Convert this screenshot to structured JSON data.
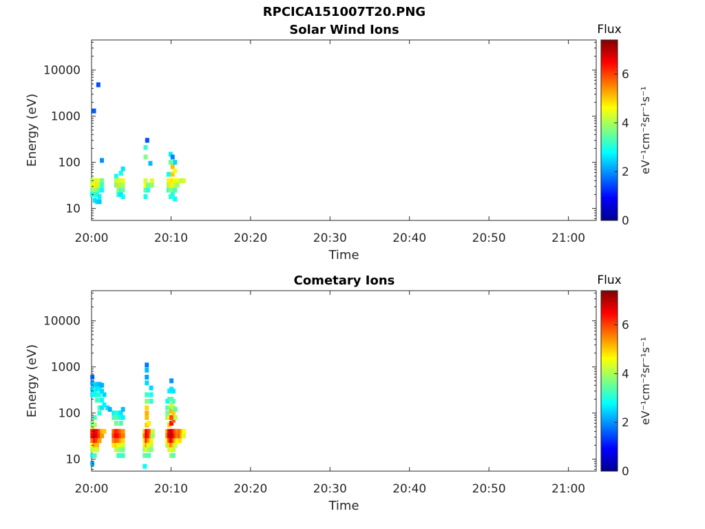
{
  "figure": {
    "title": "RPCICA151007T20.PNG"
  },
  "chart_data": [
    {
      "type": "heatmap",
      "title": "Solar Wind Ions",
      "xlabel": "Time",
      "ylabel": "Energy (eV)",
      "x_ticks": [
        "20:00",
        "20:10",
        "20:20",
        "20:30",
        "20:40",
        "20:50",
        "21:00"
      ],
      "y_ticks": [
        "10",
        "100",
        "1000",
        "10000"
      ],
      "y_scale": "log",
      "ylim": [
        5.5,
        45000
      ],
      "xlim": [
        "20:00",
        "21:03.5"
      ],
      "colorbar": {
        "label": "Flux",
        "unit": "eV⁻¹cm⁻²sr⁻¹s⁻¹",
        "range": [
          0,
          7.4
        ],
        "ticks": [
          "0",
          "2",
          "4",
          "6"
        ],
        "colormap": "jet"
      },
      "cells_time_minutes_after_2000_energy_eV_flux": [
        [
          0.1,
          40,
          3.9
        ],
        [
          0.1,
          32,
          4.4
        ],
        [
          0.1,
          25,
          3.6
        ],
        [
          0.1,
          20,
          2.8
        ],
        [
          0.4,
          40,
          4.5
        ],
        [
          0.4,
          32,
          4.7
        ],
        [
          0.4,
          25,
          4.0
        ],
        [
          0.4,
          20,
          3.2
        ],
        [
          0.4,
          15,
          2.6
        ],
        [
          0.7,
          40,
          4.2
        ],
        [
          0.7,
          32,
          4.8
        ],
        [
          0.7,
          25,
          3.8
        ],
        [
          0.7,
          20,
          3.0
        ],
        [
          0.7,
          14,
          2.5
        ],
        [
          1.0,
          40,
          4.6
        ],
        [
          1.0,
          32,
          4.1
        ],
        [
          1.0,
          25,
          3.4
        ],
        [
          1.0,
          18,
          2.7
        ],
        [
          1.0,
          14,
          2.4
        ],
        [
          1.3,
          40,
          3.6
        ],
        [
          1.3,
          32,
          3.2
        ],
        [
          1.3,
          25,
          2.8
        ],
        [
          0.3,
          1300,
          1.6
        ],
        [
          0.85,
          4800,
          1.5
        ],
        [
          1.3,
          110,
          2.0
        ],
        [
          3.1,
          50,
          2.9
        ],
        [
          3.1,
          40,
          4.1
        ],
        [
          3.1,
          32,
          3.6
        ],
        [
          3.4,
          40,
          4.4
        ],
        [
          3.4,
          32,
          4.9
        ],
        [
          3.4,
          25,
          3.7
        ],
        [
          3.4,
          20,
          3.0
        ],
        [
          3.7,
          58,
          2.9
        ],
        [
          3.7,
          40,
          4.2
        ],
        [
          3.7,
          32,
          3.9
        ],
        [
          3.7,
          25,
          3.3
        ],
        [
          3.7,
          20,
          2.6
        ],
        [
          3.95,
          72,
          2.6
        ],
        [
          3.95,
          40,
          4.5
        ],
        [
          3.95,
          32,
          4.0
        ],
        [
          3.95,
          25,
          3.5
        ],
        [
          3.95,
          18,
          2.8
        ],
        [
          6.8,
          210,
          3.1
        ],
        [
          6.8,
          130,
          3.7
        ],
        [
          6.8,
          40,
          4.3
        ],
        [
          6.8,
          32,
          4.6
        ],
        [
          6.8,
          25,
          3.4
        ],
        [
          6.8,
          18,
          2.9
        ],
        [
          7.0,
          300,
          1.5
        ],
        [
          7.1,
          32,
          3.6
        ],
        [
          7.1,
          25,
          3.0
        ],
        [
          7.4,
          95,
          2.3
        ],
        [
          7.6,
          40,
          4.4
        ],
        [
          7.6,
          32,
          3.8
        ],
        [
          9.7,
          55,
          2.9
        ],
        [
          9.7,
          40,
          4.4
        ],
        [
          9.7,
          32,
          4.0
        ],
        [
          9.7,
          25,
          3.1
        ],
        [
          9.95,
          150,
          2.7
        ],
        [
          9.95,
          100,
          3.5
        ],
        [
          9.95,
          40,
          4.7
        ],
        [
          9.95,
          32,
          4.8
        ],
        [
          9.95,
          25,
          3.9
        ],
        [
          9.95,
          18,
          3.1
        ],
        [
          10.2,
          130,
          1.9
        ],
        [
          10.2,
          80,
          5.1
        ],
        [
          10.2,
          55,
          5.0
        ],
        [
          10.2,
          40,
          4.8
        ],
        [
          10.2,
          32,
          4.5
        ],
        [
          10.2,
          25,
          3.6
        ],
        [
          10.2,
          20,
          3.0
        ],
        [
          10.5,
          100,
          2.5
        ],
        [
          10.5,
          65,
          4.5
        ],
        [
          10.5,
          40,
          4.6
        ],
        [
          10.5,
          32,
          4.2
        ],
        [
          10.5,
          25,
          3.3
        ],
        [
          10.5,
          16,
          2.8
        ],
        [
          10.8,
          40,
          4.6
        ],
        [
          10.8,
          32,
          3.9
        ],
        [
          11.3,
          40,
          4.0
        ],
        [
          11.6,
          40,
          4.3
        ]
      ]
    },
    {
      "type": "heatmap",
      "title": "Cometary Ions",
      "xlabel": "Time",
      "ylabel": "Energy (eV)",
      "x_ticks": [
        "20:00",
        "20:10",
        "20:20",
        "20:30",
        "20:40",
        "20:50",
        "21:00"
      ],
      "y_ticks": [
        "10",
        "100",
        "1000",
        "10000"
      ],
      "y_scale": "log",
      "ylim": [
        5.5,
        45000
      ],
      "xlim": [
        "20:00",
        "21:03.5"
      ],
      "colorbar": {
        "label": "Flux",
        "unit": "eV⁻¹cm⁻²sr⁻¹s⁻¹",
        "range": [
          0,
          7.4
        ],
        "ticks": [
          "0",
          "2",
          "4",
          "6"
        ],
        "colormap": "jet"
      },
      "cells_time_minutes_after_2000_energy_eV_flux": [
        [
          0.1,
          600,
          1.7
        ],
        [
          0.1,
          450,
          2.1
        ],
        [
          0.1,
          330,
          2.4
        ],
        [
          0.1,
          250,
          2.7
        ],
        [
          0.1,
          60,
          3.6
        ],
        [
          0.1,
          45,
          4.2
        ],
        [
          0.1,
          40,
          6.2
        ],
        [
          0.1,
          32,
          6.4
        ],
        [
          0.1,
          25,
          5.6
        ],
        [
          0.1,
          20,
          4.6
        ],
        [
          0.1,
          16,
          4.1
        ],
        [
          0.1,
          12,
          2.7
        ],
        [
          0.1,
          8,
          2.2
        ],
        [
          0.4,
          400,
          2.5
        ],
        [
          0.4,
          300,
          2.9
        ],
        [
          0.4,
          250,
          2.8
        ],
        [
          0.4,
          80,
          3.3
        ],
        [
          0.4,
          55,
          4.0
        ],
        [
          0.4,
          40,
          6.7
        ],
        [
          0.4,
          32,
          6.8
        ],
        [
          0.4,
          25,
          6.3
        ],
        [
          0.4,
          20,
          5.3
        ],
        [
          0.4,
          16,
          4.4
        ],
        [
          0.4,
          12,
          3.3
        ],
        [
          0.7,
          420,
          2.4
        ],
        [
          0.7,
          330,
          2.6
        ],
        [
          0.7,
          250,
          2.9
        ],
        [
          0.7,
          190,
          3.1
        ],
        [
          0.7,
          40,
          6.5
        ],
        [
          0.7,
          32,
          6.6
        ],
        [
          0.7,
          25,
          6.0
        ],
        [
          0.7,
          20,
          5.1
        ],
        [
          0.7,
          16,
          4.3
        ],
        [
          1.0,
          420,
          2.3
        ],
        [
          1.0,
          330,
          2.7
        ],
        [
          1.0,
          250,
          3.0
        ],
        [
          1.0,
          190,
          3.3
        ],
        [
          1.0,
          130,
          3.4
        ],
        [
          1.0,
          100,
          3.0
        ],
        [
          1.0,
          40,
          6.0
        ],
        [
          1.0,
          32,
          6.1
        ],
        [
          1.0,
          25,
          5.3
        ],
        [
          1.3,
          400,
          2.2
        ],
        [
          1.3,
          300,
          2.5
        ],
        [
          1.3,
          190,
          2.8
        ],
        [
          1.3,
          130,
          2.6
        ],
        [
          1.3,
          40,
          5.2
        ],
        [
          1.3,
          32,
          5.4
        ],
        [
          1.6,
          250,
          2.5
        ],
        [
          1.6,
          150,
          2.7
        ],
        [
          1.6,
          40,
          5.0
        ],
        [
          2.0,
          130,
          2.6
        ],
        [
          2.3,
          120,
          2.2
        ],
        [
          2.8,
          100,
          2.7
        ],
        [
          2.8,
          80,
          3.2
        ],
        [
          2.8,
          40,
          5.7
        ],
        [
          2.8,
          32,
          6.0
        ],
        [
          2.8,
          25,
          5.5
        ],
        [
          2.8,
          20,
          4.8
        ],
        [
          3.1,
          100,
          3.0
        ],
        [
          3.1,
          80,
          3.4
        ],
        [
          3.1,
          60,
          3.6
        ],
        [
          3.1,
          40,
          6.3
        ],
        [
          3.1,
          32,
          6.5
        ],
        [
          3.1,
          25,
          5.8
        ],
        [
          3.1,
          20,
          4.9
        ],
        [
          3.1,
          16,
          4.2
        ],
        [
          3.4,
          100,
          2.9
        ],
        [
          3.4,
          80,
          3.3
        ],
        [
          3.4,
          40,
          6.1
        ],
        [
          3.4,
          32,
          6.4
        ],
        [
          3.4,
          25,
          5.7
        ],
        [
          3.4,
          20,
          4.7
        ],
        [
          3.4,
          16,
          4.0
        ],
        [
          3.4,
          12,
          3.2
        ],
        [
          3.7,
          100,
          2.6
        ],
        [
          3.7,
          80,
          3.0
        ],
        [
          3.7,
          60,
          3.3
        ],
        [
          3.7,
          40,
          5.8
        ],
        [
          3.7,
          32,
          6.0
        ],
        [
          3.7,
          25,
          5.3
        ],
        [
          3.7,
          20,
          4.4
        ],
        [
          3.7,
          16,
          3.8
        ],
        [
          3.7,
          12,
          3.2
        ],
        [
          3.95,
          120,
          2.3
        ],
        [
          3.95,
          80,
          2.7
        ],
        [
          3.95,
          40,
          5.4
        ],
        [
          3.95,
          32,
          5.6
        ],
        [
          3.95,
          25,
          4.9
        ],
        [
          3.95,
          20,
          4.3
        ],
        [
          3.95,
          16,
          3.6
        ],
        [
          3.95,
          12,
          3.2
        ],
        [
          6.7,
          40,
          5.0
        ],
        [
          6.7,
          32,
          5.5
        ],
        [
          6.7,
          25,
          4.8
        ],
        [
          6.7,
          20,
          4.3
        ],
        [
          6.7,
          16,
          3.9
        ],
        [
          6.7,
          12,
          3.4
        ],
        [
          6.7,
          7,
          2.8
        ],
        [
          6.95,
          1100,
          1.8
        ],
        [
          6.95,
          850,
          2.3
        ],
        [
          6.95,
          600,
          2.1
        ],
        [
          6.95,
          450,
          2.5
        ],
        [
          6.95,
          250,
          3.2
        ],
        [
          6.95,
          180,
          3.8
        ],
        [
          6.95,
          130,
          4.9
        ],
        [
          6.95,
          100,
          5.2
        ],
        [
          6.95,
          80,
          5.1
        ],
        [
          6.95,
          55,
          5.0
        ],
        [
          6.95,
          40,
          6.6
        ],
        [
          6.95,
          32,
          6.7
        ],
        [
          6.95,
          25,
          6.2
        ],
        [
          6.95,
          20,
          5.2
        ],
        [
          6.95,
          16,
          4.5
        ],
        [
          7.2,
          60,
          4.7
        ],
        [
          7.2,
          40,
          6.2
        ],
        [
          7.2,
          32,
          6.3
        ],
        [
          7.2,
          25,
          5.4
        ],
        [
          7.2,
          20,
          4.5
        ],
        [
          7.2,
          16,
          4.0
        ],
        [
          7.2,
          12,
          3.3
        ],
        [
          7.5,
          350,
          2.5
        ],
        [
          7.5,
          250,
          2.9
        ],
        [
          7.5,
          180,
          3.1
        ],
        [
          7.5,
          40,
          5.7
        ],
        [
          7.5,
          32,
          5.4
        ],
        [
          7.5,
          25,
          4.7
        ],
        [
          7.5,
          20,
          4.2
        ],
        [
          7.5,
          16,
          3.7
        ],
        [
          7.7,
          40,
          4.2
        ],
        [
          7.7,
          32,
          3.9
        ],
        [
          9.55,
          180,
          2.8
        ],
        [
          9.55,
          130,
          3.2
        ],
        [
          9.55,
          100,
          3.6
        ],
        [
          9.55,
          80,
          3.9
        ],
        [
          9.55,
          40,
          5.3
        ],
        [
          9.55,
          32,
          5.6
        ],
        [
          9.55,
          25,
          4.7
        ],
        [
          9.55,
          20,
          4.0
        ],
        [
          9.8,
          300,
          2.7
        ],
        [
          9.8,
          200,
          3.1
        ],
        [
          9.8,
          130,
          3.6
        ],
        [
          9.8,
          80,
          4.7
        ],
        [
          9.8,
          55,
          5.0
        ],
        [
          9.8,
          40,
          6.5
        ],
        [
          9.8,
          32,
          6.7
        ],
        [
          9.8,
          25,
          5.9
        ],
        [
          9.8,
          20,
          4.9
        ],
        [
          9.8,
          16,
          4.2
        ],
        [
          10.05,
          500,
          2.0
        ],
        [
          10.05,
          330,
          2.6
        ],
        [
          10.05,
          200,
          3.4
        ],
        [
          10.05,
          150,
          4.3
        ],
        [
          10.05,
          110,
          5.2
        ],
        [
          10.05,
          80,
          6.0
        ],
        [
          10.05,
          60,
          6.4
        ],
        [
          10.05,
          40,
          6.9
        ],
        [
          10.05,
          32,
          6.9
        ],
        [
          10.05,
          25,
          6.6
        ],
        [
          10.05,
          20,
          5.6
        ],
        [
          10.05,
          16,
          4.6
        ],
        [
          10.05,
          12,
          3.7
        ],
        [
          10.3,
          300,
          2.6
        ],
        [
          10.3,
          180,
          3.3
        ],
        [
          10.3,
          130,
          4.0
        ],
        [
          10.3,
          100,
          5.0
        ],
        [
          10.3,
          70,
          5.8
        ],
        [
          10.3,
          40,
          6.6
        ],
        [
          10.3,
          32,
          6.7
        ],
        [
          10.3,
          25,
          6.1
        ],
        [
          10.3,
          20,
          5.1
        ],
        [
          10.3,
          16,
          4.2
        ],
        [
          10.3,
          12,
          3.4
        ],
        [
          10.55,
          120,
          3.4
        ],
        [
          10.55,
          80,
          4.1
        ],
        [
          10.55,
          40,
          5.9
        ],
        [
          10.55,
          32,
          6.1
        ],
        [
          10.55,
          25,
          5.1
        ],
        [
          10.55,
          20,
          4.3
        ],
        [
          10.8,
          40,
          5.5
        ],
        [
          10.8,
          32,
          5.6
        ],
        [
          10.8,
          25,
          4.6
        ],
        [
          11.1,
          40,
          5.7
        ],
        [
          11.1,
          32,
          5.8
        ],
        [
          11.1,
          25,
          4.8
        ],
        [
          11.4,
          40,
          5.3
        ],
        [
          11.4,
          32,
          5.1
        ],
        [
          11.6,
          40,
          4.6
        ],
        [
          11.6,
          32,
          4.4
        ]
      ]
    }
  ]
}
